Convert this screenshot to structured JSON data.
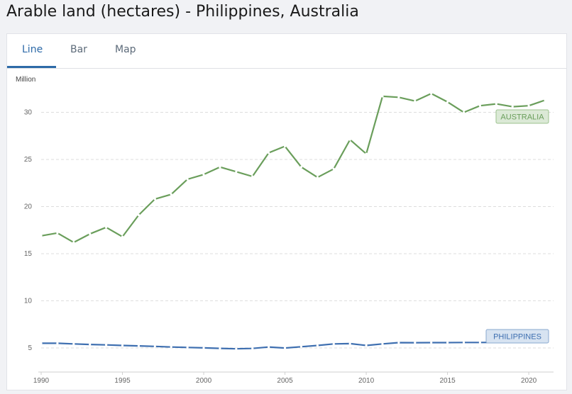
{
  "page": {
    "title": "Arable land (hectares) - Philippines, Australia"
  },
  "tabs": [
    {
      "label": "Line",
      "active": true
    },
    {
      "label": "Bar",
      "active": false
    },
    {
      "label": "Map",
      "active": false
    }
  ],
  "colors": {
    "australia": "#6a9e5b",
    "philippines": "#3e6fb0",
    "grid": "#dddddd",
    "axis_text": "#666666",
    "active_tab": "#2d6aa8"
  },
  "chart_data": {
    "type": "line",
    "ylabel": "Million",
    "ylim": [
      3.5,
      33.5
    ],
    "xlim": [
      1990,
      2021
    ],
    "y_ticks": [
      5,
      10,
      15,
      20,
      25,
      30
    ],
    "x_ticks": [
      1990,
      1995,
      2000,
      2005,
      2010,
      2015,
      2020
    ],
    "grid": true,
    "x": [
      1990,
      1991,
      1992,
      1993,
      1994,
      1995,
      1996,
      1997,
      1998,
      1999,
      2000,
      2001,
      2002,
      2003,
      2004,
      2005,
      2006,
      2007,
      2008,
      2009,
      2010,
      2011,
      2012,
      2013,
      2014,
      2015,
      2016,
      2017,
      2018,
      2019,
      2020,
      2021
    ],
    "series": [
      {
        "name": "AUSTRALIA",
        "values": [
          16.9,
          17.2,
          16.2,
          17.1,
          17.8,
          16.8,
          19.1,
          20.8,
          21.3,
          22.9,
          23.4,
          24.2,
          23.7,
          23.2,
          25.7,
          26.4,
          24.2,
          23.1,
          24.0,
          27.1,
          25.6,
          31.7,
          31.6,
          31.2,
          32.0,
          31.1,
          30.0,
          30.7,
          30.9,
          30.6,
          30.7,
          31.3
        ]
      },
      {
        "name": "PHILIPPINES",
        "values": [
          5.5,
          5.5,
          5.43,
          5.37,
          5.33,
          5.27,
          5.22,
          5.17,
          5.1,
          5.06,
          5.01,
          4.96,
          4.91,
          4.95,
          5.1,
          5.0,
          5.13,
          5.27,
          5.43,
          5.46,
          5.27,
          5.43,
          5.57,
          5.56,
          5.57,
          5.57,
          5.58,
          5.58,
          5.59,
          5.59,
          5.59,
          5.59
        ]
      }
    ]
  }
}
